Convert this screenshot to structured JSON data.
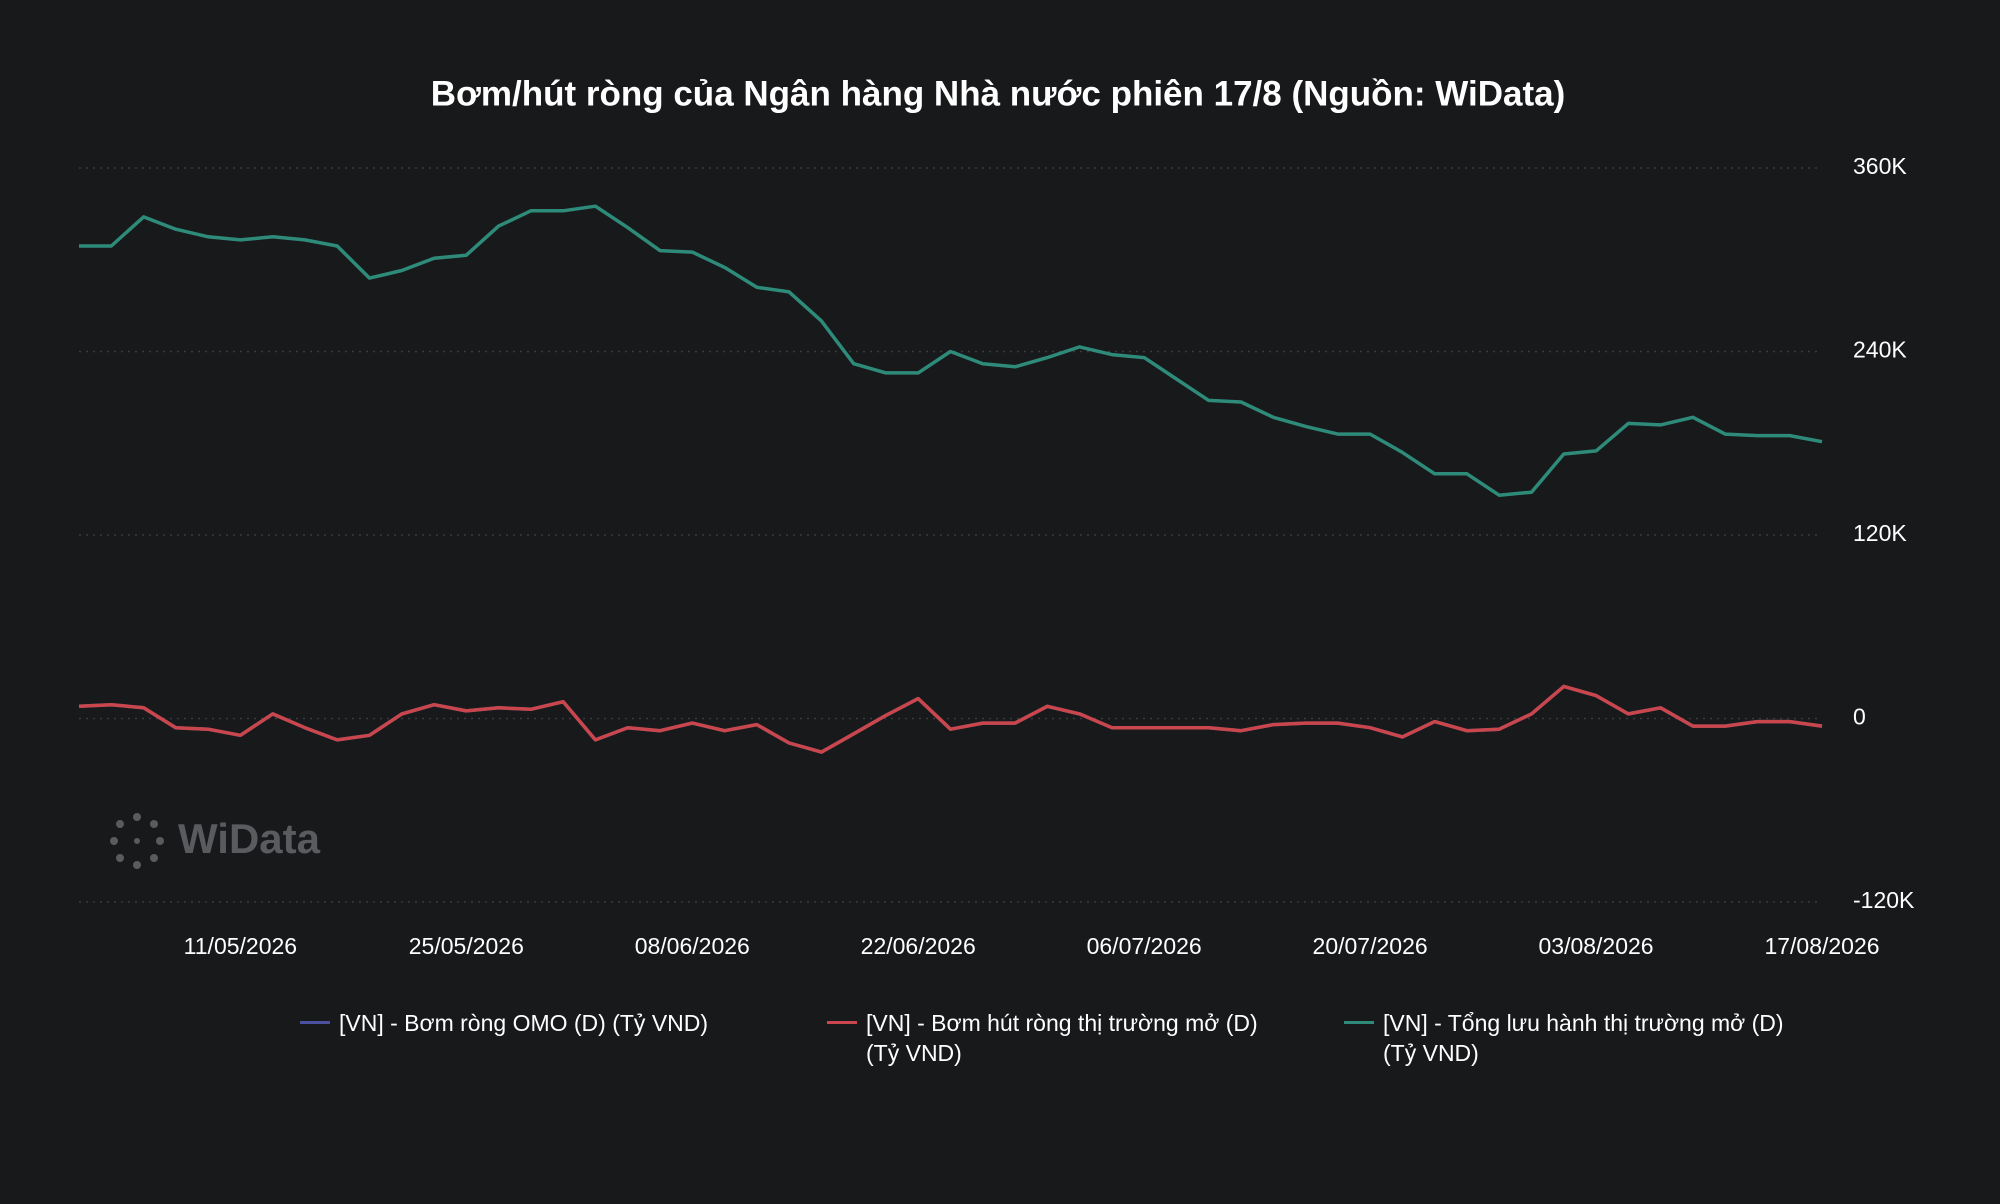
{
  "chart_data": {
    "type": "line",
    "title": "Bơm/hút ròng của Ngân hàng Nhà nước phiên 17/8 (Nguồn: WiData)",
    "watermark": "WiData",
    "x": [
      "01/05/2026",
      "03/05/2026",
      "05/05/2026",
      "07/05/2026",
      "09/05/2026",
      "11/05/2026",
      "13/05/2026",
      "15/05/2026",
      "17/05/2026",
      "19/05/2026",
      "21/05/2026",
      "23/05/2026",
      "25/05/2026",
      "27/05/2026",
      "29/05/2026",
      "31/05/2026",
      "02/06/2026",
      "04/06/2026",
      "06/06/2026",
      "08/06/2026",
      "10/06/2026",
      "12/06/2026",
      "14/06/2026",
      "16/06/2026",
      "18/06/2026",
      "20/06/2026",
      "22/06/2026",
      "24/06/2026",
      "26/06/2026",
      "28/06/2026",
      "30/06/2026",
      "02/07/2026",
      "04/07/2026",
      "06/07/2026",
      "08/07/2026",
      "10/07/2026",
      "12/07/2026",
      "14/07/2026",
      "16/07/2026",
      "18/07/2026",
      "20/07/2026",
      "22/07/2026",
      "24/07/2026",
      "26/07/2026",
      "28/07/2026",
      "30/07/2026",
      "01/08/2026",
      "03/08/2026",
      "05/08/2026",
      "07/08/2026",
      "09/08/2026",
      "11/08/2026",
      "13/08/2026",
      "15/08/2026",
      "17/08/2026"
    ],
    "series": [
      {
        "name": "[VN] - Bơm ròng OMO (D) (Tỷ VND)",
        "color": "#4b4fa0",
        "values": [
          8000,
          9000,
          7000,
          -6000,
          -7000,
          -11000,
          3000,
          -6000,
          -14000,
          -11000,
          3000,
          9000,
          5000,
          7000,
          6000,
          11000,
          -14000,
          -6000,
          -8000,
          -3000,
          -8000,
          -4000,
          -16000,
          -22000,
          -10000,
          2000,
          13000,
          -7000,
          -3000,
          -3000,
          8000,
          3000,
          -6000,
          -6000,
          -6000,
          -6000,
          -8000,
          -4000,
          -3000,
          -3000,
          -6000,
          -12000,
          -2000,
          -8000,
          -7000,
          3000,
          21000,
          15000,
          3000,
          7000,
          -5000,
          -5000,
          -2000,
          -2000,
          -5000
        ]
      },
      {
        "name": "[VN] - Bơm hút ròng thị trường mở (D) (Tỷ VND)",
        "color": "#c9474c",
        "values": [
          8000,
          9000,
          7000,
          -6000,
          -7000,
          -11000,
          3000,
          -6000,
          -14000,
          -11000,
          3000,
          9000,
          5000,
          7000,
          6000,
          11000,
          -14000,
          -6000,
          -8000,
          -3000,
          -8000,
          -4000,
          -16000,
          -22000,
          -10000,
          2000,
          13000,
          -7000,
          -3000,
          -3000,
          8000,
          3000,
          -6000,
          -6000,
          -6000,
          -6000,
          -8000,
          -4000,
          -3000,
          -3000,
          -6000,
          -12000,
          -2000,
          -8000,
          -7000,
          3000,
          21000,
          15000,
          3000,
          7000,
          -5000,
          -5000,
          -2000,
          -2000,
          -5000
        ]
      },
      {
        "name": "[VN] - Tổng lưu hành thị trường mở (D) (Tỷ VND)",
        "color": "#2e8b7a",
        "values": [
          309000,
          309000,
          328000,
          320000,
          315000,
          313000,
          315000,
          313000,
          309000,
          288000,
          293000,
          301000,
          303000,
          322000,
          332000,
          332000,
          335000,
          321000,
          306000,
          305000,
          295000,
          282000,
          279000,
          260000,
          232000,
          226000,
          226000,
          240000,
          232000,
          230000,
          236000,
          243000,
          238000,
          236000,
          222000,
          208000,
          207000,
          197000,
          191000,
          186000,
          186000,
          174000,
          160000,
          160000,
          146000,
          148000,
          173000,
          175000,
          193000,
          192000,
          197000,
          186000,
          185000,
          185000,
          181000
        ]
      }
    ],
    "xlim": [
      "01/05/2026",
      "17/08/2026"
    ],
    "xticks": [
      "11/05/2026",
      "25/05/2026",
      "08/06/2026",
      "22/06/2026",
      "06/07/2026",
      "20/07/2026",
      "03/08/2026",
      "17/08/2026"
    ],
    "ylim": [
      -120000,
      360000
    ],
    "yticks": [
      {
        "value": -120000,
        "label": "-120K"
      },
      {
        "value": 0,
        "label": "0"
      },
      {
        "value": 120000,
        "label": "120K"
      },
      {
        "value": 240000,
        "label": "240K"
      },
      {
        "value": 360000,
        "label": "360K"
      }
    ],
    "grid": true
  }
}
